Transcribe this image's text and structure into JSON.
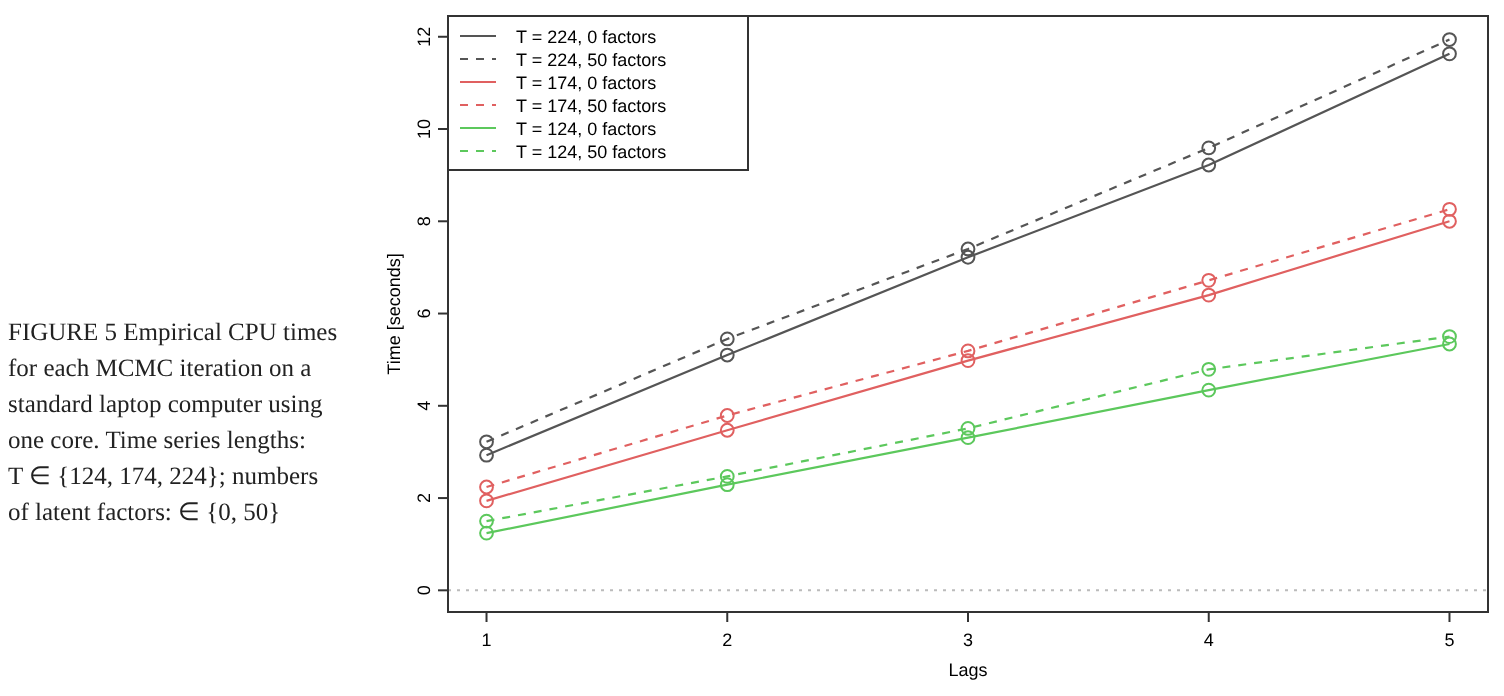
{
  "chart_data": {
    "type": "line",
    "xlabel": "Lags",
    "ylabel": "Time [seconds]",
    "annotations": [
      "FIGURE 5 Empirical CPU times for each MCMC iteration on a standard laptop computer using one core. Time series lengths: T ∈ {124, 174, 224}; numbers of latent factors: ∈ {0, 50}"
    ],
    "x": [
      1,
      2,
      3,
      4,
      5
    ],
    "xlim": [
      0.84,
      5.16
    ],
    "xticks": [
      1,
      2,
      3,
      4,
      5
    ],
    "ylim": [
      -0.47,
      12.45
    ],
    "yticks": [
      0,
      2,
      4,
      6,
      8,
      10,
      12
    ],
    "grid": false,
    "legend": "top left",
    "marker": "circle",
    "ref_lines": [
      {
        "axis": "y",
        "value": 0,
        "color": "#bbbbbb",
        "line_style": "dotted"
      }
    ],
    "series": [
      {
        "name": "T = 224, 0 factors",
        "color": "#555555",
        "line_style": "solid",
        "values": [
          2.93,
          5.1,
          7.22,
          9.22,
          11.63
        ]
      },
      {
        "name": "T = 224, 50 factors",
        "color": "#555555",
        "line_style": "dashed",
        "values": [
          3.22,
          5.45,
          7.4,
          9.59,
          11.94
        ]
      },
      {
        "name": "T = 174, 0 factors",
        "color": "#e06060",
        "line_style": "solid",
        "values": [
          1.94,
          3.47,
          4.98,
          6.4,
          8.0
        ]
      },
      {
        "name": "T = 174, 50 factors",
        "color": "#e06060",
        "line_style": "dashed",
        "values": [
          2.24,
          3.79,
          5.19,
          6.72,
          8.26
        ]
      },
      {
        "name": "T = 124, 0 factors",
        "color": "#5cc85c",
        "line_style": "solid",
        "values": [
          1.24,
          2.29,
          3.31,
          4.34,
          5.34
        ]
      },
      {
        "name": "T = 124, 50 factors",
        "color": "#5cc85c",
        "line_style": "dashed",
        "values": [
          1.5,
          2.47,
          3.51,
          4.79,
          5.5
        ]
      }
    ]
  }
}
